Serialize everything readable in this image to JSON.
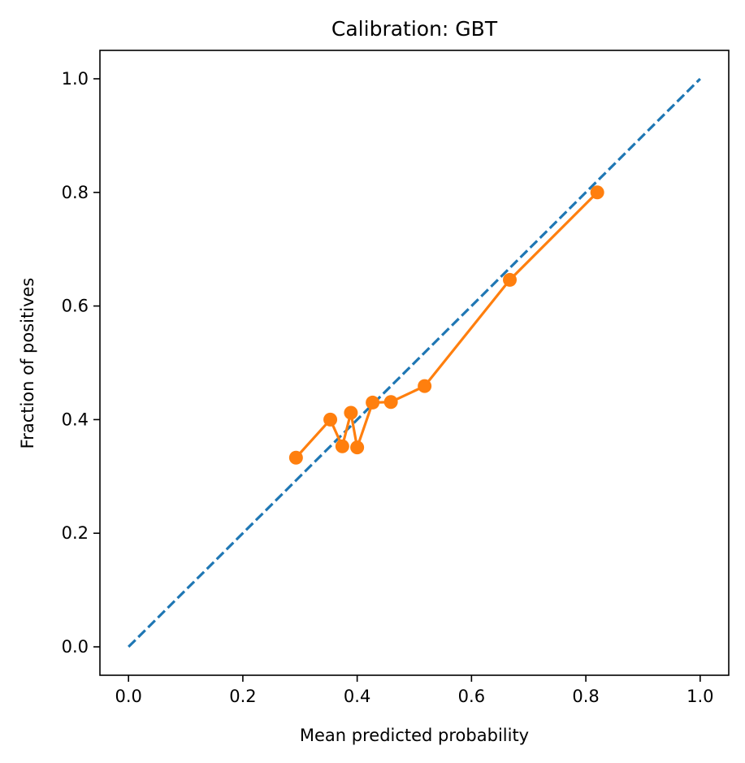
{
  "chart_data": {
    "type": "line",
    "title": "Calibration: GBT",
    "xlabel": "Mean predicted probability",
    "ylabel": "Fraction of positives",
    "xlim": [
      -0.05,
      1.05
    ],
    "ylim": [
      -0.05,
      1.05
    ],
    "xticks": [
      0.0,
      0.2,
      0.4,
      0.6,
      0.8,
      1.0
    ],
    "xtick_labels": [
      "0.0",
      "0.2",
      "0.4",
      "0.6",
      "0.8",
      "1.0"
    ],
    "yticks": [
      0.0,
      0.2,
      0.4,
      0.6,
      0.8,
      1.0
    ],
    "ytick_labels": [
      "0.0",
      "0.2",
      "0.4",
      "0.6",
      "0.8",
      "1.0"
    ],
    "grid": false,
    "series": [
      {
        "style": "dashed",
        "color": "#1f77b4",
        "x": [
          0.0,
          1.0
        ],
        "y": [
          0.0,
          1.0
        ]
      },
      {
        "style": "line-markers",
        "color": "#ff7f0e",
        "x": [
          0.293,
          0.353,
          0.374,
          0.389,
          0.4,
          0.427,
          0.459,
          0.518,
          0.667,
          0.82
        ],
        "y": [
          0.333,
          0.4,
          0.353,
          0.412,
          0.351,
          0.43,
          0.431,
          0.459,
          0.646,
          0.8
        ]
      }
    ]
  }
}
